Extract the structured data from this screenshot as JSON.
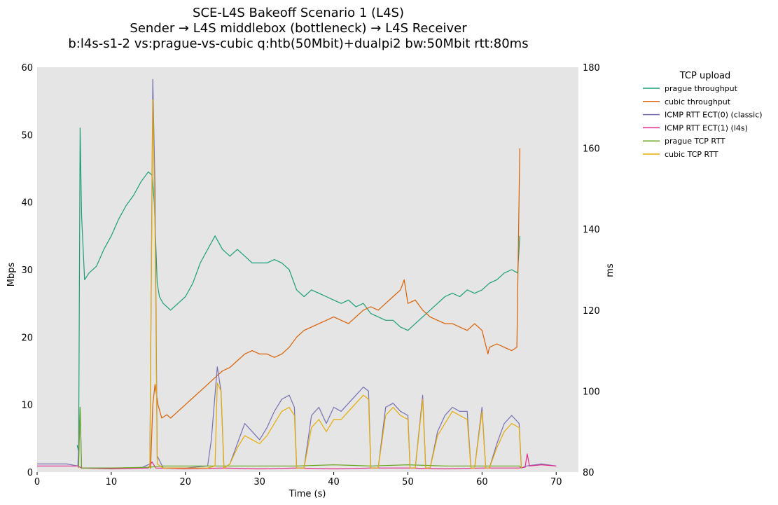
{
  "chart_data": {
    "type": "line",
    "title": [
      "SCE-L4S Bakeoff Scenario 1 (L4S)",
      "Sender → L4S middlebox (bottleneck) → L4S Receiver",
      "b:l4s-s1-2 vs:prague-vs-cubic q:htb(50Mbit)+dualpi2 bw:50Mbit rtt:80ms"
    ],
    "xlabel": "Time (s)",
    "ylabel": "Mbps",
    "y2label": "ms",
    "xlim": [
      0,
      73
    ],
    "ylim": [
      0,
      60
    ],
    "y2lim": [
      80,
      180
    ],
    "xticks": [
      "0",
      "10",
      "20",
      "30",
      "40",
      "50",
      "60",
      "70"
    ],
    "yticks": [
      "0",
      "10",
      "20",
      "30",
      "40",
      "50",
      "60"
    ],
    "y2ticks": [
      "80",
      "100",
      "120",
      "140",
      "160",
      "180"
    ],
    "grid": false,
    "legend": {
      "title": "TCP upload",
      "placement": "outside-right"
    },
    "series": [
      {
        "name": "prague throughput",
        "color": "#1b9e77",
        "axis": "left",
        "points": [
          [
            5.4,
            4.0
          ],
          [
            5.6,
            3.0
          ],
          [
            5.8,
            51.0
          ],
          [
            6.0,
            38.0
          ],
          [
            6.4,
            28.5
          ],
          [
            7,
            29.5
          ],
          [
            8,
            30.5
          ],
          [
            9,
            33
          ],
          [
            10,
            35
          ],
          [
            11,
            37.5
          ],
          [
            12,
            39.5
          ],
          [
            13,
            41
          ],
          [
            14,
            43
          ],
          [
            15,
            44.5
          ],
          [
            15.5,
            44
          ],
          [
            15.8,
            40
          ],
          [
            16.2,
            28
          ],
          [
            16.5,
            26
          ],
          [
            17,
            25
          ],
          [
            18,
            24
          ],
          [
            19,
            25
          ],
          [
            20,
            26
          ],
          [
            21,
            28
          ],
          [
            22,
            31
          ],
          [
            23,
            33
          ],
          [
            24,
            35
          ],
          [
            25,
            33
          ],
          [
            26,
            32
          ],
          [
            27,
            33
          ],
          [
            28,
            32
          ],
          [
            29,
            31
          ],
          [
            30,
            31
          ],
          [
            31,
            31
          ],
          [
            32,
            31.5
          ],
          [
            33,
            31
          ],
          [
            34,
            30
          ],
          [
            35,
            27
          ],
          [
            36,
            26
          ],
          [
            37,
            27
          ],
          [
            38,
            26.5
          ],
          [
            39,
            26
          ],
          [
            40,
            25.5
          ],
          [
            41,
            25
          ],
          [
            42,
            25.5
          ],
          [
            43,
            24.5
          ],
          [
            44,
            25
          ],
          [
            45,
            23.5
          ],
          [
            46,
            23
          ],
          [
            47,
            22.5
          ],
          [
            48,
            22.5
          ],
          [
            49,
            21.5
          ],
          [
            50,
            21
          ],
          [
            51,
            22
          ],
          [
            52,
            23
          ],
          [
            53,
            24
          ],
          [
            54,
            25
          ],
          [
            55,
            26
          ],
          [
            56,
            26.5
          ],
          [
            57,
            26
          ],
          [
            58,
            27
          ],
          [
            59,
            26.5
          ],
          [
            60,
            27
          ],
          [
            61,
            28
          ],
          [
            62,
            28.5
          ],
          [
            63,
            29.5
          ],
          [
            64,
            30
          ],
          [
            64.8,
            29.5
          ],
          [
            65.1,
            35.0
          ]
        ]
      },
      {
        "name": "cubic throughput",
        "color": "#d95f02",
        "axis": "left",
        "points": [
          [
            15.3,
            0.5
          ],
          [
            15.6,
            10
          ],
          [
            15.9,
            13
          ],
          [
            16.3,
            10
          ],
          [
            16.8,
            8
          ],
          [
            17.5,
            8.5
          ],
          [
            18,
            8
          ],
          [
            19,
            9
          ],
          [
            20,
            10
          ],
          [
            21,
            11
          ],
          [
            22,
            12
          ],
          [
            23,
            13
          ],
          [
            24,
            14
          ],
          [
            25,
            15
          ],
          [
            26,
            15.5
          ],
          [
            27,
            16.5
          ],
          [
            28,
            17.5
          ],
          [
            29,
            18
          ],
          [
            30,
            17.5
          ],
          [
            31,
            17.5
          ],
          [
            32,
            17
          ],
          [
            33,
            17.5
          ],
          [
            34,
            18.5
          ],
          [
            35,
            20
          ],
          [
            36,
            21
          ],
          [
            37,
            21.5
          ],
          [
            38,
            22
          ],
          [
            39,
            22.5
          ],
          [
            40,
            23
          ],
          [
            41,
            22.5
          ],
          [
            42,
            22
          ],
          [
            43,
            23
          ],
          [
            44,
            24
          ],
          [
            45,
            24.5
          ],
          [
            46,
            24
          ],
          [
            47,
            25
          ],
          [
            48,
            26
          ],
          [
            49,
            27
          ],
          [
            49.5,
            28.5
          ],
          [
            50,
            25
          ],
          [
            51,
            25.5
          ],
          [
            52,
            24
          ],
          [
            53,
            23
          ],
          [
            54,
            22.5
          ],
          [
            55,
            22
          ],
          [
            56,
            22
          ],
          [
            57,
            21.5
          ],
          [
            58,
            21
          ],
          [
            59,
            22
          ],
          [
            60,
            21
          ],
          [
            60.8,
            17.5
          ],
          [
            61,
            18.5
          ],
          [
            62,
            19
          ],
          [
            63,
            18.5
          ],
          [
            64,
            18
          ],
          [
            64.7,
            18.5
          ],
          [
            65.1,
            48.0
          ]
        ]
      },
      {
        "name": "ICMP RTT ECT(0) (classic)",
        "color": "#7570b3",
        "axis": "right",
        "points": [
          [
            0,
            82
          ],
          [
            2,
            82
          ],
          [
            4,
            82
          ],
          [
            5.5,
            81.5
          ],
          [
            5.8,
            96
          ],
          [
            6.0,
            81
          ],
          [
            8,
            81
          ],
          [
            10,
            81
          ],
          [
            12,
            81
          ],
          [
            14,
            81
          ],
          [
            15.2,
            82
          ],
          [
            15.6,
            177
          ],
          [
            15.9,
            150
          ],
          [
            16.2,
            84
          ],
          [
            17,
            81
          ],
          [
            20,
            81
          ],
          [
            23,
            81.5
          ],
          [
            23.5,
            88
          ],
          [
            24.3,
            106
          ],
          [
            24.8,
            100
          ],
          [
            25.2,
            81
          ],
          [
            26,
            82
          ],
          [
            27,
            87
          ],
          [
            28,
            92
          ],
          [
            29,
            90
          ],
          [
            30,
            88
          ],
          [
            31,
            91
          ],
          [
            32,
            95
          ],
          [
            33,
            98
          ],
          [
            34,
            99
          ],
          [
            34.7,
            96
          ],
          [
            35,
            81
          ],
          [
            36,
            81
          ],
          [
            37,
            94
          ],
          [
            38,
            96
          ],
          [
            39,
            92
          ],
          [
            40,
            96
          ],
          [
            41,
            95
          ],
          [
            42,
            97
          ],
          [
            43,
            99
          ],
          [
            44,
            101
          ],
          [
            44.7,
            100
          ],
          [
            45,
            81
          ],
          [
            46,
            81
          ],
          [
            47,
            96
          ],
          [
            48,
            97
          ],
          [
            49,
            95
          ],
          [
            50,
            94
          ],
          [
            50.3,
            81
          ],
          [
            51,
            81
          ],
          [
            52,
            99
          ],
          [
            52.4,
            81
          ],
          [
            53,
            81
          ],
          [
            54,
            90
          ],
          [
            55,
            94
          ],
          [
            56,
            96
          ],
          [
            57,
            95
          ],
          [
            58,
            95
          ],
          [
            58.5,
            81
          ],
          [
            59,
            81
          ],
          [
            60,
            96
          ],
          [
            60.5,
            81
          ],
          [
            61,
            81
          ],
          [
            62,
            87
          ],
          [
            63,
            92
          ],
          [
            64,
            94
          ],
          [
            65,
            92
          ],
          [
            65.3,
            81
          ],
          [
            66,
            81.5
          ],
          [
            68,
            82
          ],
          [
            70,
            81.5
          ]
        ]
      },
      {
        "name": "ICMP RTT ECT(1) (l4s)",
        "color": "#e7298a",
        "axis": "right",
        "points": [
          [
            0,
            81.5
          ],
          [
            3,
            81.5
          ],
          [
            5.5,
            81.5
          ],
          [
            6,
            81
          ],
          [
            10,
            80.8
          ],
          [
            15,
            81
          ],
          [
            15.5,
            82.5
          ],
          [
            16,
            81
          ],
          [
            20,
            80.8
          ],
          [
            25,
            81
          ],
          [
            30,
            80.8
          ],
          [
            35,
            81
          ],
          [
            40,
            80.8
          ],
          [
            45,
            81
          ],
          [
            50,
            81
          ],
          [
            55,
            80.8
          ],
          [
            60,
            81
          ],
          [
            65,
            81
          ],
          [
            65.8,
            81.2
          ],
          [
            66.1,
            84.5
          ],
          [
            66.4,
            81.5
          ],
          [
            68,
            81.8
          ],
          [
            70,
            81.5
          ]
        ]
      },
      {
        "name": "prague TCP RTT",
        "color": "#66a61e",
        "axis": "right",
        "points": [
          [
            5.6,
            81
          ],
          [
            5.8,
            96
          ],
          [
            6.0,
            81
          ],
          [
            10,
            81
          ],
          [
            15,
            81.2
          ],
          [
            17,
            81.5
          ],
          [
            20,
            81.5
          ],
          [
            25,
            81.5
          ],
          [
            30,
            81.5
          ],
          [
            35,
            81.5
          ],
          [
            40,
            81.8
          ],
          [
            45,
            81.5
          ],
          [
            50,
            81.8
          ],
          [
            55,
            81.5
          ],
          [
            60,
            81.5
          ],
          [
            65,
            81.5
          ],
          [
            65.4,
            81
          ]
        ]
      },
      {
        "name": "cubic TCP RTT",
        "color": "#e6ab02",
        "axis": "right",
        "points": [
          [
            15.2,
            81
          ],
          [
            15.6,
            172
          ],
          [
            15.9,
            140
          ],
          [
            16.2,
            82
          ],
          [
            17,
            81
          ],
          [
            20,
            81
          ],
          [
            23,
            81
          ],
          [
            24,
            81.5
          ],
          [
            24.3,
            102
          ],
          [
            24.8,
            100
          ],
          [
            25.2,
            81
          ],
          [
            26,
            82
          ],
          [
            27,
            86
          ],
          [
            28,
            89
          ],
          [
            29,
            88
          ],
          [
            30,
            87
          ],
          [
            31,
            89
          ],
          [
            32,
            92
          ],
          [
            33,
            95
          ],
          [
            34,
            96
          ],
          [
            34.7,
            94
          ],
          [
            35,
            81
          ],
          [
            36,
            81
          ],
          [
            37,
            91
          ],
          [
            38,
            93
          ],
          [
            39,
            90
          ],
          [
            40,
            93
          ],
          [
            41,
            93
          ],
          [
            42,
            95
          ],
          [
            43,
            97
          ],
          [
            44,
            99
          ],
          [
            44.7,
            98
          ],
          [
            45,
            81
          ],
          [
            46,
            81
          ],
          [
            47,
            94
          ],
          [
            48,
            96
          ],
          [
            49,
            94
          ],
          [
            50,
            93
          ],
          [
            50.3,
            81
          ],
          [
            51,
            81
          ],
          [
            52,
            98
          ],
          [
            52.4,
            81
          ],
          [
            53,
            81
          ],
          [
            54,
            89
          ],
          [
            55,
            92
          ],
          [
            56,
            95
          ],
          [
            57,
            94
          ],
          [
            58,
            93
          ],
          [
            58.5,
            81
          ],
          [
            59,
            81
          ],
          [
            60,
            95
          ],
          [
            60.5,
            81
          ],
          [
            61,
            81
          ],
          [
            62,
            86
          ],
          [
            63,
            90
          ],
          [
            64,
            92
          ],
          [
            65,
            91
          ],
          [
            65.3,
            81
          ]
        ]
      }
    ]
  }
}
